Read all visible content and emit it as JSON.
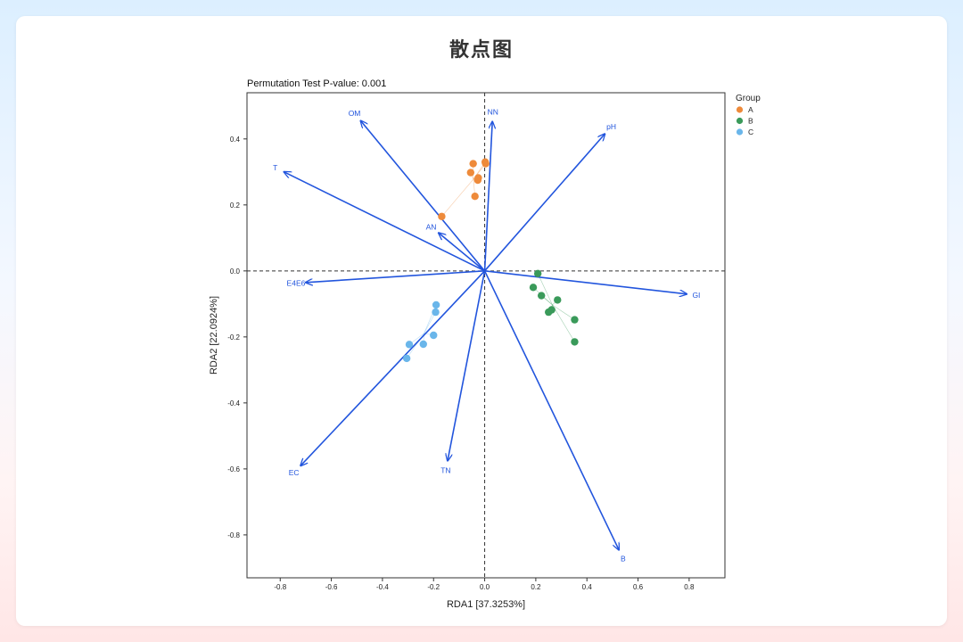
{
  "page": {
    "title": "散点图"
  },
  "chart_data": {
    "type": "scatter",
    "title": "Permutation Test P-value: 0.001",
    "xlabel": "RDA1 [37.3253%]",
    "ylabel": "RDA2 [22.0924%]",
    "xlim": [
      -0.93,
      0.94
    ],
    "ylim": [
      -0.93,
      0.54
    ],
    "x_ticks": [
      -0.8,
      -0.6,
      -0.4,
      -0.2,
      0.0,
      0.2,
      0.4,
      0.6,
      0.8
    ],
    "y_ticks": [
      -0.8,
      -0.6,
      -0.4,
      -0.2,
      0.0,
      0.2,
      0.4
    ],
    "tick_decimals": 1,
    "grid": false,
    "reference_lines": {
      "x": 0,
      "y": 0,
      "style": "dashed"
    },
    "legend": {
      "title": "Group",
      "placement": "outside-right-top"
    },
    "arrow_color": "#2255dd",
    "series": [
      {
        "name": "A",
        "color": "#ee8a3a",
        "points": [
          {
            "x": -0.168,
            "y": 0.165
          },
          {
            "x": -0.038,
            "y": 0.226
          },
          {
            "x": -0.027,
            "y": 0.275
          },
          {
            "x": -0.025,
            "y": 0.282
          },
          {
            "x": -0.055,
            "y": 0.298
          },
          {
            "x": -0.045,
            "y": 0.325
          },
          {
            "x": 0.002,
            "y": 0.33
          },
          {
            "x": 0.004,
            "y": 0.325
          }
        ],
        "centroid": {
          "x": -0.044,
          "y": 0.278
        }
      },
      {
        "name": "B",
        "color": "#3a9a5a",
        "points": [
          {
            "x": 0.208,
            "y": -0.008
          },
          {
            "x": 0.19,
            "y": -0.05
          },
          {
            "x": 0.222,
            "y": -0.075
          },
          {
            "x": 0.285,
            "y": -0.088
          },
          {
            "x": 0.262,
            "y": -0.118
          },
          {
            "x": 0.25,
            "y": -0.125
          },
          {
            "x": 0.352,
            "y": -0.148
          },
          {
            "x": 0.352,
            "y": -0.215
          }
        ],
        "centroid": {
          "x": 0.265,
          "y": -0.103
        }
      },
      {
        "name": "C",
        "color": "#6ab6ea",
        "points": [
          {
            "x": -0.19,
            "y": -0.103
          },
          {
            "x": -0.192,
            "y": -0.125
          },
          {
            "x": -0.2,
            "y": -0.195
          },
          {
            "x": -0.24,
            "y": -0.222
          },
          {
            "x": -0.295,
            "y": -0.223
          },
          {
            "x": -0.305,
            "y": -0.265
          }
        ],
        "centroid": {
          "x": -0.237,
          "y": -0.189
        }
      }
    ],
    "arrows": [
      {
        "label": "OM",
        "x": -0.485,
        "y": 0.455
      },
      {
        "label": "NN",
        "x": 0.03,
        "y": 0.452
      },
      {
        "label": "pH",
        "x": 0.47,
        "y": 0.415
      },
      {
        "label": "T",
        "x": -0.785,
        "y": 0.3
      },
      {
        "label": "AN",
        "x": -0.18,
        "y": 0.115
      },
      {
        "label": "E4E6",
        "x": -0.7,
        "y": -0.035
      },
      {
        "label": "GI",
        "x": 0.79,
        "y": -0.07
      },
      {
        "label": "EC",
        "x": -0.72,
        "y": -0.59
      },
      {
        "label": "TN",
        "x": -0.145,
        "y": -0.575
      },
      {
        "label": "B",
        "x": 0.525,
        "y": -0.845
      }
    ]
  }
}
